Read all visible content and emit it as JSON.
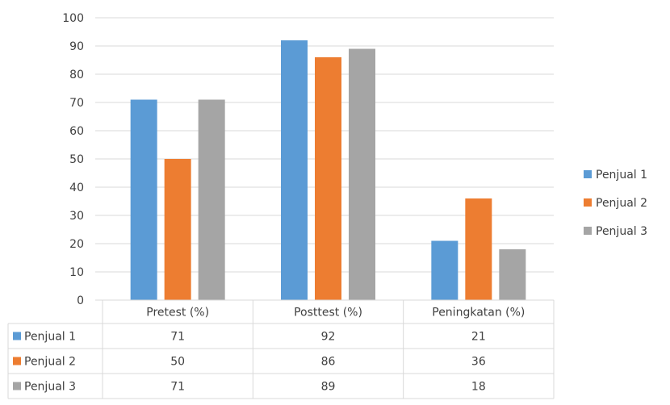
{
  "chart_data": {
    "type": "bar",
    "categories": [
      "Pretest (%)",
      "Posttest (%)",
      "Peningkatan (%)"
    ],
    "series": [
      {
        "name": "Penjual 1",
        "values": [
          71,
          92,
          21
        ],
        "color": "#5B9BD5"
      },
      {
        "name": "Penjual 2",
        "values": [
          50,
          86,
          36
        ],
        "color": "#ED7D31"
      },
      {
        "name": "Penjual 3",
        "values": [
          71,
          89,
          18
        ],
        "color": "#A5A5A5"
      }
    ],
    "ylim": [
      0,
      100
    ],
    "yticks": [
      0,
      10,
      20,
      30,
      40,
      50,
      60,
      70,
      80,
      90,
      100
    ],
    "grid": true,
    "legend_position": "right",
    "data_table": true
  }
}
